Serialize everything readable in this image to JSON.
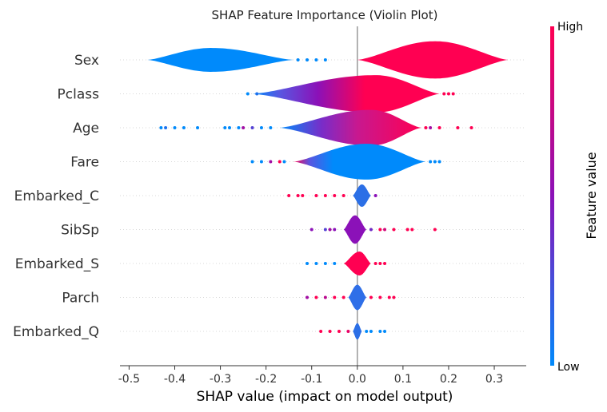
{
  "chart_data": {
    "type": "violin",
    "title": "SHAP Feature Importance (Violin Plot)",
    "xlabel": "SHAP value (impact on model output)",
    "xlim": [
      -0.52,
      0.37
    ],
    "xticks": [
      {
        "value": -0.5,
        "label": "-0.5"
      },
      {
        "value": -0.4,
        "label": "-0.4"
      },
      {
        "value": -0.3,
        "label": "-0.3"
      },
      {
        "value": -0.2,
        "label": "-0.2"
      },
      {
        "value": -0.1,
        "label": "-0.1"
      },
      {
        "value": 0.0,
        "label": "0.0"
      },
      {
        "value": 0.1,
        "label": "0.1"
      },
      {
        "value": 0.2,
        "label": "0.2"
      },
      {
        "value": 0.3,
        "label": "0.3"
      }
    ],
    "colorbar": {
      "high_label": "High",
      "low_label": "Low",
      "label": "Feature value",
      "low_color": "#008afb",
      "mid_color": "#8b11b8",
      "high_color": "#ff0052"
    },
    "features": [
      {
        "name": "Sex",
        "segments": [
          {
            "min": -0.46,
            "max": -0.14,
            "peak": -0.32,
            "width": 0.32,
            "color": "#008afb"
          },
          {
            "min": 0.0,
            "max": 0.33,
            "peak": 0.17,
            "width": 0.5,
            "color": "#ff0052"
          }
        ],
        "dots": [
          [
            -0.13,
            0.0
          ],
          [
            -0.11,
            0.0
          ],
          [
            -0.09,
            0.0
          ],
          [
            -0.07,
            0.0
          ]
        ]
      },
      {
        "name": "Pclass",
        "segments": [
          {
            "min": -0.23,
            "max": 0.18,
            "peak": 0.04,
            "width": 0.5,
            "color": "#ff0052",
            "gradient": [
              [
                0,
                "#008afb"
              ],
              [
                0.15,
                "#5a55e0"
              ],
              [
                0.35,
                "#8b11b8"
              ],
              [
                0.6,
                "#ff0052"
              ],
              [
                1,
                "#ff0052"
              ]
            ]
          }
        ],
        "dots": [
          [
            -0.24,
            0.0
          ],
          [
            -0.22,
            0.1
          ],
          [
            0.19,
            1.0
          ],
          [
            0.2,
            1.0
          ],
          [
            0.21,
            1.0
          ]
        ]
      },
      {
        "name": "Age",
        "segments": [
          {
            "min": -0.17,
            "max": 0.14,
            "peak": 0.03,
            "width": 0.48,
            "color": "#d6147e",
            "gradient": [
              [
                0,
                "#008afb"
              ],
              [
                0.3,
                "#7a2cc8"
              ],
              [
                0.55,
                "#c8188f"
              ],
              [
                1,
                "#ff0052"
              ]
            ]
          }
        ],
        "dots": [
          [
            -0.43,
            0.0
          ],
          [
            -0.42,
            0.1
          ],
          [
            -0.4,
            0.0
          ],
          [
            -0.38,
            0.0
          ],
          [
            -0.35,
            0.0
          ],
          [
            -0.29,
            0.0
          ],
          [
            -0.28,
            0.0
          ],
          [
            -0.26,
            0.0
          ],
          [
            -0.25,
            0.6
          ],
          [
            -0.23,
            0.3
          ],
          [
            -0.21,
            0.0
          ],
          [
            -0.19,
            0.0
          ],
          [
            0.15,
            1.0
          ],
          [
            0.16,
            0.6
          ],
          [
            0.18,
            1.0
          ],
          [
            0.22,
            1.0
          ],
          [
            0.25,
            1.0
          ]
        ]
      },
      {
        "name": "Fare",
        "segments": [
          {
            "min": -0.14,
            "max": 0.15,
            "peak": 0.02,
            "width": 0.48,
            "color": "#008afb",
            "gradient": [
              [
                0,
                "#ff0052"
              ],
              [
                0.12,
                "#5a55e0"
              ],
              [
                0.3,
                "#008afb"
              ],
              [
                1,
                "#008afb"
              ]
            ]
          }
        ],
        "dots": [
          [
            -0.23,
            0.0
          ],
          [
            -0.21,
            0.0
          ],
          [
            -0.19,
            0.6
          ],
          [
            -0.17,
            1.0
          ],
          [
            -0.16,
            0.0
          ],
          [
            0.16,
            0.0
          ],
          [
            0.17,
            0.0
          ],
          [
            0.18,
            0.0
          ]
        ]
      },
      {
        "name": "Embarked_C",
        "segments": [
          {
            "min": -0.01,
            "max": 0.03,
            "peak": 0.01,
            "width": 0.3,
            "color": "#2b6fe6"
          }
        ],
        "dots": [
          [
            -0.15,
            1.0
          ],
          [
            -0.13,
            1.0
          ],
          [
            -0.12,
            1.0
          ],
          [
            -0.09,
            1.0
          ],
          [
            -0.07,
            1.0
          ],
          [
            -0.05,
            1.0
          ],
          [
            -0.03,
            1.0
          ],
          [
            0.04,
            0.5
          ]
        ]
      },
      {
        "name": "SibSp",
        "segments": [
          {
            "min": -0.03,
            "max": 0.02,
            "peak": -0.005,
            "width": 0.38,
            "color": "#8b11b8"
          }
        ],
        "dots": [
          [
            -0.1,
            0.5
          ],
          [
            -0.07,
            0.3
          ],
          [
            -0.06,
            0.6
          ],
          [
            -0.05,
            0.5
          ],
          [
            0.03,
            0.4
          ],
          [
            0.05,
            1.0
          ],
          [
            0.06,
            0.8
          ],
          [
            0.08,
            1.0
          ],
          [
            0.11,
            1.0
          ],
          [
            0.12,
            1.0
          ],
          [
            0.17,
            1.0
          ]
        ]
      },
      {
        "name": "Embarked_S",
        "segments": [
          {
            "min": -0.03,
            "max": 0.03,
            "peak": 0.005,
            "width": 0.32,
            "color": "#ff0052"
          }
        ],
        "dots": [
          [
            -0.11,
            0.0
          ],
          [
            -0.09,
            0.0
          ],
          [
            -0.07,
            0.0
          ],
          [
            -0.05,
            0.0
          ],
          [
            0.04,
            1.0
          ],
          [
            0.05,
            1.0
          ],
          [
            0.06,
            1.0
          ]
        ]
      },
      {
        "name": "Parch",
        "segments": [
          {
            "min": -0.02,
            "max": 0.02,
            "peak": 0.0,
            "width": 0.34,
            "color": "#2f6fe8"
          }
        ],
        "dots": [
          [
            -0.11,
            0.6
          ],
          [
            -0.09,
            1.0
          ],
          [
            -0.07,
            0.7
          ],
          [
            -0.05,
            1.0
          ],
          [
            -0.03,
            1.0
          ],
          [
            0.03,
            1.0
          ],
          [
            0.05,
            1.0
          ],
          [
            0.07,
            1.0
          ],
          [
            0.08,
            1.0
          ]
        ]
      },
      {
        "name": "Embarked_Q",
        "segments": [
          {
            "min": -0.01,
            "max": 0.01,
            "peak": 0.0,
            "width": 0.22,
            "color": "#2b6fe6"
          }
        ],
        "dots": [
          [
            -0.08,
            1.0
          ],
          [
            -0.06,
            1.0
          ],
          [
            -0.04,
            1.0
          ],
          [
            -0.02,
            0.9
          ],
          [
            0.02,
            0.0
          ],
          [
            0.03,
            0.0
          ],
          [
            0.05,
            0.0
          ],
          [
            0.06,
            0.0
          ]
        ]
      }
    ]
  }
}
